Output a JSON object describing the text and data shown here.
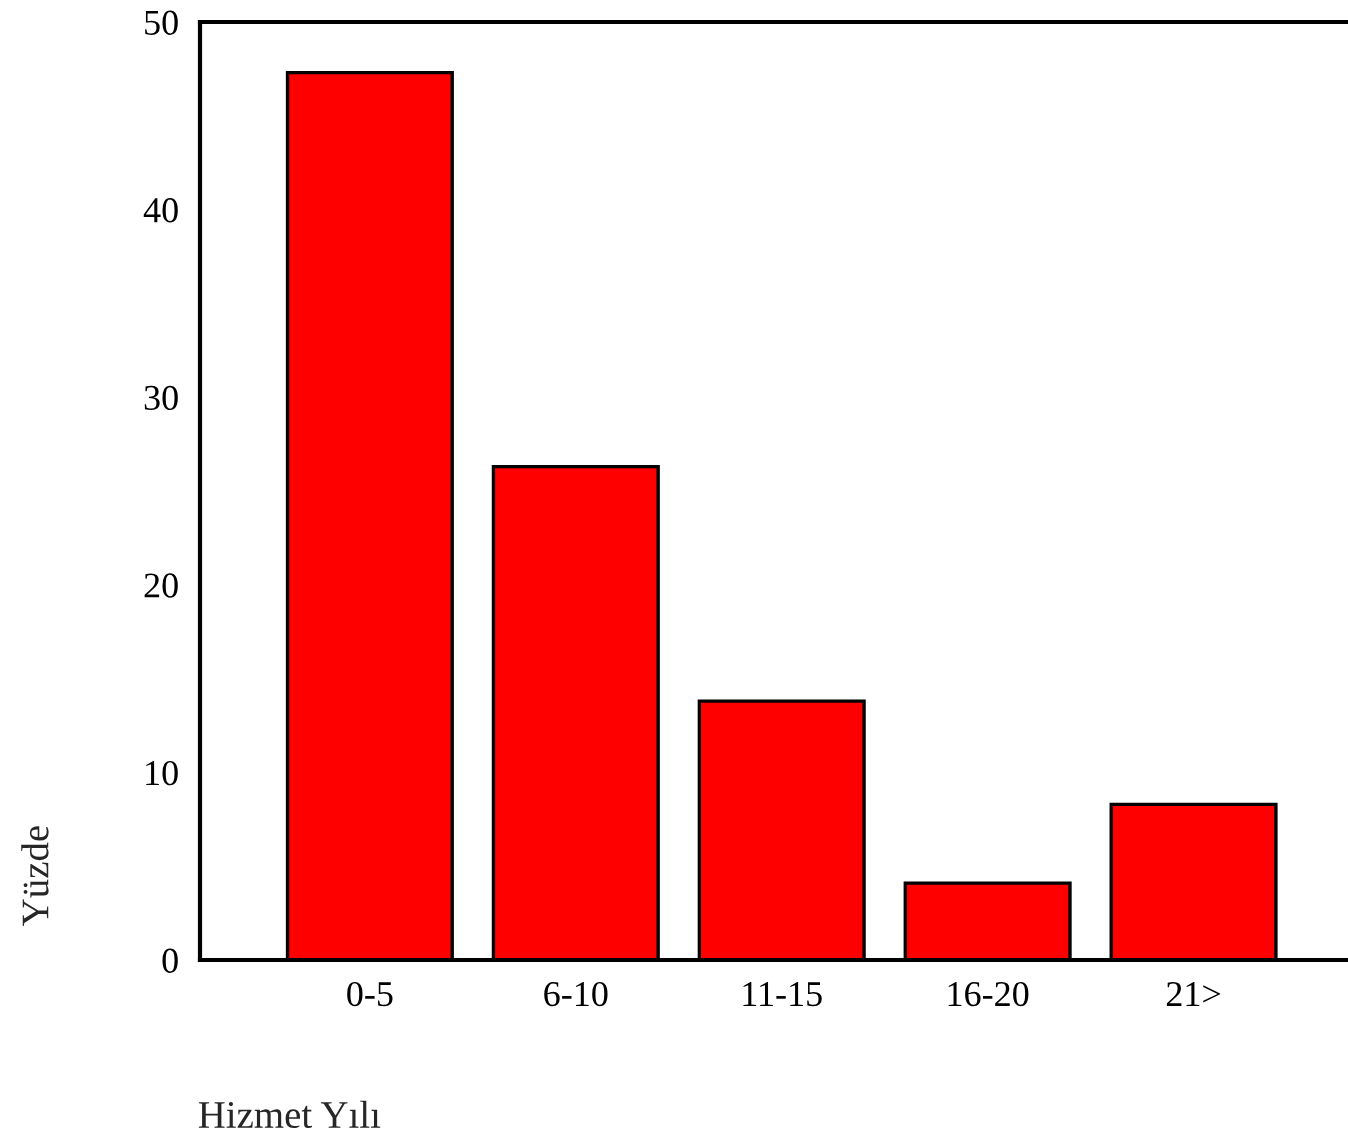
{
  "chart_data": {
    "type": "bar",
    "xlabel": "Hizmet Yılı",
    "ylabel": "Yüzde",
    "categories": [
      "0-5",
      "6-10",
      "11-15",
      "16-20",
      "21>"
    ],
    "values": [
      47.3,
      26.3,
      13.8,
      4.1,
      8.3
    ],
    "color": "#ff0000",
    "ylim": [
      0,
      50
    ],
    "yticks": [
      0,
      10,
      20,
      30,
      40,
      50
    ],
    "grid": false
  }
}
